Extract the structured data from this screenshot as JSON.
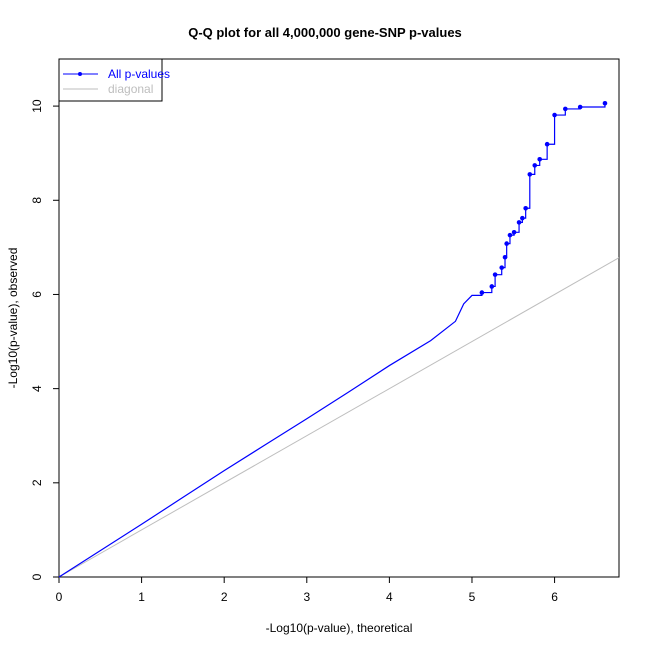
{
  "chart_data": {
    "type": "line",
    "title": "Q-Q plot for all 4,000,000 gene-SNP p-values",
    "xlabel": "-Log10(p-value), theoretical",
    "ylabel": "-Log10(p-value), observed",
    "xlim": [
      0,
      6.78
    ],
    "ylim": [
      0,
      11
    ],
    "xticks": [
      0,
      1,
      2,
      3,
      4,
      5,
      6
    ],
    "yticks": [
      0,
      2,
      4,
      6,
      8,
      10
    ],
    "grid": false,
    "legend_position": "top-left",
    "series": [
      {
        "name": "All p-values",
        "color": "#0000ff",
        "style": "step line with point markers at top",
        "x": [
          0,
          0.5,
          1,
          1.5,
          2,
          2.5,
          3,
          3.5,
          4,
          4.5,
          4.8,
          4.9,
          5.0,
          5.12,
          5.24,
          5.28,
          5.36,
          5.4,
          5.42,
          5.46,
          5.51,
          5.57,
          5.61,
          5.65,
          5.7,
          5.76,
          5.82,
          5.91,
          6.0,
          6.13,
          6.31,
          6.61
        ],
        "y": [
          0,
          0.56,
          1.12,
          1.69,
          2.26,
          2.81,
          3.36,
          3.92,
          4.49,
          5.02,
          5.43,
          5.8,
          5.98,
          6.04,
          6.17,
          6.42,
          6.57,
          6.79,
          7.08,
          7.26,
          7.32,
          7.53,
          7.62,
          7.83,
          8.55,
          8.74,
          8.87,
          9.19,
          9.81,
          9.94,
          9.98,
          10.06
        ],
        "marker_from_x": 5.12
      },
      {
        "name": "diagonal",
        "color": "#bebebe",
        "x": [
          0,
          6.78
        ],
        "y": [
          0,
          6.78
        ]
      }
    ]
  }
}
